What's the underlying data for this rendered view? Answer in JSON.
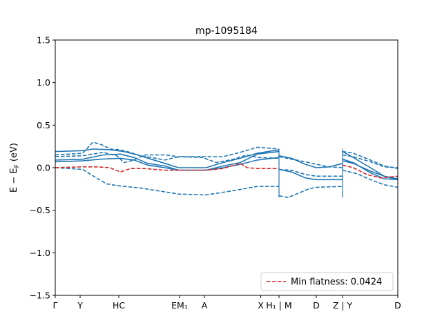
{
  "chart_data": {
    "type": "line",
    "title": "mp-1095184",
    "ylabel": "E − E_F (eV)",
    "xlabel": "",
    "ylim": [
      -1.5,
      1.5
    ],
    "xlim": [
      0,
      10.0
    ],
    "grid": false,
    "y_ticks": [
      {
        "value": -1.5,
        "label": "−1.5"
      },
      {
        "value": -1.0,
        "label": "−1.0"
      },
      {
        "value": -0.5,
        "label": "−0.5"
      },
      {
        "value": 0.0,
        "label": "0.0"
      },
      {
        "value": 0.5,
        "label": "0.5"
      },
      {
        "value": 1.0,
        "label": "1.0"
      },
      {
        "value": 1.5,
        "label": "1.5"
      }
    ],
    "x_ticks": [
      {
        "value": 0.0,
        "label": "Γ"
      },
      {
        "value": 0.726,
        "label": "Y"
      },
      {
        "value": 1.855,
        "label": "HC"
      },
      {
        "value": 3.629,
        "label": "EM₁"
      },
      {
        "value": 4.355,
        "label": "A"
      },
      {
        "value": 6.0,
        "label": "X"
      },
      {
        "value": 6.532,
        "label": "H₁ | M"
      },
      {
        "value": 7.621,
        "label": "D"
      },
      {
        "value": 8.387,
        "label": "Z | Y"
      },
      {
        "value": 10.0,
        "label": "D"
      }
    ],
    "legend": {
      "position": "lower-right",
      "label": "Min flatness: 0.0424"
    },
    "series": [
      {
        "style": "solid",
        "color": "#1f77b4",
        "segments": [
          [
            [
              0,
              0.19
            ],
            [
              0.8,
              0.2
            ],
            [
              1.1,
              0.22
            ],
            [
              1.6,
              0.21
            ],
            [
              2.0,
              0.19
            ],
            [
              2.4,
              0.15
            ],
            [
              2.8,
              0.1
            ],
            [
              3.2,
              0.05
            ],
            [
              3.6,
              0.0
            ],
            [
              4.4,
              0.0
            ],
            [
              4.9,
              0.06
            ],
            [
              5.4,
              0.11
            ],
            [
              5.9,
              0.17
            ],
            [
              6.532,
              0.21
            ]
          ],
          [
            [
              6.532,
              0.14
            ],
            [
              6.9,
              0.11
            ],
            [
              7.3,
              0.04
            ],
            [
              7.621,
              0.0
            ],
            [
              8.0,
              0.01
            ],
            [
              8.387,
              0.05
            ]
          ],
          [
            [
              8.387,
              0.19
            ],
            [
              8.7,
              0.12
            ],
            [
              9.2,
              0.0
            ],
            [
              9.6,
              -0.1
            ],
            [
              10.0,
              -0.14
            ]
          ]
        ]
      },
      {
        "style": "solid",
        "color": "#1f77b4",
        "segments": [
          [
            [
              0,
              0.07
            ],
            [
              0.8,
              0.08
            ],
            [
              1.3,
              0.1
            ],
            [
              1.9,
              0.11
            ],
            [
              2.3,
              0.09
            ],
            [
              2.7,
              0.03
            ],
            [
              3.2,
              0.0
            ],
            [
              3.6,
              -0.03
            ],
            [
              4.4,
              -0.03
            ],
            [
              4.9,
              0.0
            ],
            [
              5.4,
              0.04
            ],
            [
              5.9,
              0.09
            ],
            [
              6.532,
              0.12
            ]
          ],
          [
            [
              6.532,
              -0.02
            ],
            [
              6.9,
              -0.05
            ],
            [
              7.3,
              -0.12
            ],
            [
              7.621,
              -0.14
            ],
            [
              8.387,
              -0.14
            ]
          ],
          [
            [
              8.387,
              0.1
            ],
            [
              8.7,
              0.06
            ],
            [
              9.2,
              -0.06
            ],
            [
              9.6,
              -0.13
            ],
            [
              10.0,
              -0.14
            ]
          ]
        ]
      },
      {
        "style": "solid",
        "color": "#1f77b4",
        "segments": [
          [
            [
              0,
              0.09
            ],
            [
              0.8,
              0.1
            ],
            [
              1.4,
              0.15
            ],
            [
              1.9,
              0.16
            ],
            [
              2.3,
              0.12
            ],
            [
              2.7,
              0.05
            ],
            [
              3.2,
              0.02
            ],
            [
              3.6,
              -0.03
            ],
            [
              4.4,
              -0.03
            ],
            [
              4.9,
              0.02
            ],
            [
              5.4,
              0.06
            ],
            [
              5.9,
              0.16
            ],
            [
              6.532,
              0.19
            ]
          ],
          [
            [
              8.387,
              0.08
            ],
            [
              8.7,
              0.05
            ],
            [
              9.2,
              -0.04
            ],
            [
              9.6,
              -0.1
            ],
            [
              10.0,
              -0.13
            ]
          ]
        ]
      },
      {
        "style": "dashed",
        "color": "#1f77b4",
        "segments": [
          [
            [
              0,
              0.15
            ],
            [
              0.8,
              0.17
            ],
            [
              1.1,
              0.3
            ],
            [
              1.35,
              0.27
            ],
            [
              1.6,
              0.22
            ],
            [
              1.9,
              0.21
            ],
            [
              2.1,
              0.19
            ],
            [
              2.5,
              0.14
            ],
            [
              2.8,
              0.12
            ],
            [
              3.2,
              0.09
            ],
            [
              3.5,
              0.12
            ],
            [
              3.7,
              0.13
            ],
            [
              4.4,
              0.13
            ],
            [
              4.9,
              0.13
            ],
            [
              5.4,
              0.18
            ],
            [
              5.9,
              0.24
            ],
            [
              6.532,
              0.22
            ]
          ],
          [
            [
              6.532,
              0.13
            ],
            [
              6.9,
              0.1
            ],
            [
              7.3,
              0.07
            ],
            [
              7.621,
              0.04
            ],
            [
              8.0,
              0.01
            ],
            [
              8.387,
              0.0
            ]
          ],
          [
            [
              8.387,
              0.19
            ],
            [
              8.7,
              0.17
            ],
            [
              9.2,
              0.09
            ],
            [
              9.6,
              0.02
            ],
            [
              10.0,
              -0.01
            ]
          ]
        ]
      },
      {
        "style": "dashed",
        "color": "#1f77b4",
        "segments": [
          [
            [
              0,
              0.13
            ],
            [
              0.8,
              0.14
            ],
            [
              1.4,
              0.18
            ],
            [
              1.8,
              0.14
            ],
            [
              2.0,
              0.06
            ],
            [
              2.3,
              0.09
            ],
            [
              2.6,
              0.15
            ],
            [
              3.2,
              0.15
            ],
            [
              3.6,
              0.13
            ],
            [
              4.3,
              0.12
            ],
            [
              4.7,
              0.06
            ],
            [
              5.2,
              0.1
            ],
            [
              5.6,
              0.15
            ],
            [
              5.9,
              0.12
            ],
            [
              6.532,
              0.11
            ]
          ],
          [
            [
              8.387,
              0.15
            ],
            [
              8.7,
              0.13
            ],
            [
              9.2,
              0.07
            ],
            [
              9.6,
              0.01
            ],
            [
              10.0,
              0.0
            ]
          ]
        ]
      },
      {
        "style": "dashed",
        "color": "#1f77b4",
        "segments": [
          [
            [
              0,
              0.0
            ],
            [
              0.8,
              -0.02
            ],
            [
              1.2,
              -0.12
            ],
            [
              1.5,
              -0.19
            ],
            [
              1.8,
              -0.21
            ],
            [
              2.5,
              -0.24
            ],
            [
              3.6,
              -0.31
            ],
            [
              4.4,
              -0.32
            ],
            [
              5.2,
              -0.27
            ],
            [
              5.9,
              -0.22
            ],
            [
              6.532,
              -0.22
            ]
          ],
          [
            [
              6.532,
              -0.33
            ],
            [
              6.8,
              -0.35
            ],
            [
              7.1,
              -0.3
            ],
            [
              7.4,
              -0.25
            ],
            [
              7.621,
              -0.23
            ],
            [
              8.387,
              -0.22
            ]
          ],
          [
            [
              8.387,
              -0.03
            ],
            [
              8.8,
              -0.07
            ],
            [
              9.2,
              -0.14
            ],
            [
              9.6,
              -0.2
            ],
            [
              10.0,
              -0.23
            ]
          ]
        ]
      },
      {
        "style": "dashed",
        "color": "#1f77b4",
        "segments": [
          [
            [
              6.532,
              -0.02
            ],
            [
              6.9,
              -0.03
            ],
            [
              7.3,
              -0.08
            ],
            [
              7.621,
              -0.1
            ],
            [
              8.387,
              -0.1
            ]
          ]
        ]
      },
      {
        "style": "dashed",
        "color": "#d62728",
        "segments": [
          [
            [
              0,
              0.0
            ],
            [
              0.8,
              0.01
            ],
            [
              1.2,
              0.01
            ],
            [
              1.6,
              0.0
            ],
            [
              1.9,
              -0.05
            ],
            [
              2.2,
              -0.01
            ],
            [
              2.6,
              -0.01
            ],
            [
              3.2,
              -0.03
            ],
            [
              3.6,
              -0.03
            ],
            [
              4.4,
              -0.03
            ],
            [
              4.9,
              -0.01
            ],
            [
              5.4,
              0.05
            ],
            [
              5.6,
              0.0
            ],
            [
              5.9,
              -0.01
            ],
            [
              6.532,
              -0.01
            ]
          ],
          [
            [
              8.387,
              0.03
            ],
            [
              8.7,
              0.0
            ],
            [
              9.1,
              -0.08
            ],
            [
              9.5,
              -0.12
            ],
            [
              10.0,
              -0.1
            ]
          ]
        ]
      }
    ]
  }
}
